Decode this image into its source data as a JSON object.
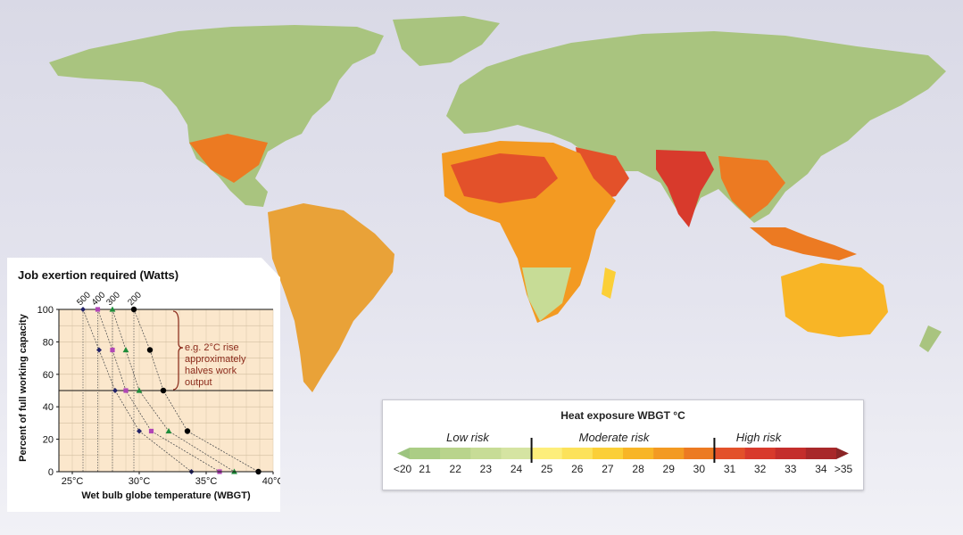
{
  "colors": {
    "land": "#a9c47f",
    "ocean_top": "#d9d9e6",
    "inset_bg": "#fbe7cc",
    "annotation": "#8b2a1a",
    "series_500": "#222266",
    "series_400": "#b146b6",
    "series_300": "#1e8c3a",
    "series_200": "#000000"
  },
  "inset": {
    "title": "Job exertion required (Watts)",
    "ylabel": "Percent of full working capacity",
    "xlabel": "Wet bulb globe temperature (WBGT)",
    "annotation": [
      "e.g. 2°C rise",
      "approximately",
      "halves work",
      "output"
    ]
  },
  "legend": {
    "title": "Heat exposure WBGT °C",
    "risk_labels": {
      "low": "Low risk",
      "moderate": "Moderate risk",
      "high": "High risk"
    },
    "scale": [
      {
        "label": "<20",
        "color": "#9cc47f"
      },
      {
        "label": "21",
        "color": "#abcd85"
      },
      {
        "label": "22",
        "color": "#b9d48c"
      },
      {
        "label": "23",
        "color": "#c7dc96"
      },
      {
        "label": "24",
        "color": "#d5e4a2"
      },
      {
        "label": "25",
        "color": "#fdee7b"
      },
      {
        "label": "26",
        "color": "#fce25a"
      },
      {
        "label": "27",
        "color": "#fbcf37"
      },
      {
        "label": "28",
        "color": "#f8b526"
      },
      {
        "label": "29",
        "color": "#f39a22"
      },
      {
        "label": "30",
        "color": "#ec7a22"
      },
      {
        "label": "31",
        "color": "#e3512a"
      },
      {
        "label": "32",
        "color": "#d83a2c"
      },
      {
        "label": "33",
        "color": "#c42e2c"
      },
      {
        "label": "34",
        "color": "#a8282a"
      },
      {
        "label": ">35",
        "color": "#8a2526"
      }
    ],
    "dividers_after": [
      "24",
      "30"
    ]
  },
  "chart_data": {
    "type": "line",
    "title": "Job exertion required (Watts)",
    "xlabel": "Wet bulb globe temperature (WBGT)",
    "ylabel": "Percent of full working capacity",
    "xlim": [
      24,
      40
    ],
    "ylim": [
      0,
      100
    ],
    "x_ticks": [
      "25°C",
      "30°C",
      "35°C",
      "40°C"
    ],
    "y_ticks": [
      "0",
      "20",
      "40",
      "60",
      "80",
      "100"
    ],
    "series": [
      {
        "name": "500",
        "marker": "diamond",
        "x": [
          25.8,
          27.0,
          28.2,
          30.0,
          33.9
        ],
        "y": [
          100,
          75,
          50,
          25,
          0
        ]
      },
      {
        "name": "400",
        "marker": "square",
        "x": [
          26.9,
          28.0,
          29.0,
          30.9,
          36.0
        ],
        "y": [
          100,
          75,
          50,
          25,
          0
        ]
      },
      {
        "name": "300",
        "marker": "triangle",
        "x": [
          28.0,
          29.0,
          30.0,
          32.2,
          37.1
        ],
        "y": [
          100,
          75,
          50,
          25,
          0
        ]
      },
      {
        "name": "200",
        "marker": "circle",
        "x": [
          29.6,
          30.8,
          31.8,
          33.6,
          38.9
        ],
        "y": [
          100,
          75,
          50,
          25,
          0
        ]
      }
    ]
  }
}
